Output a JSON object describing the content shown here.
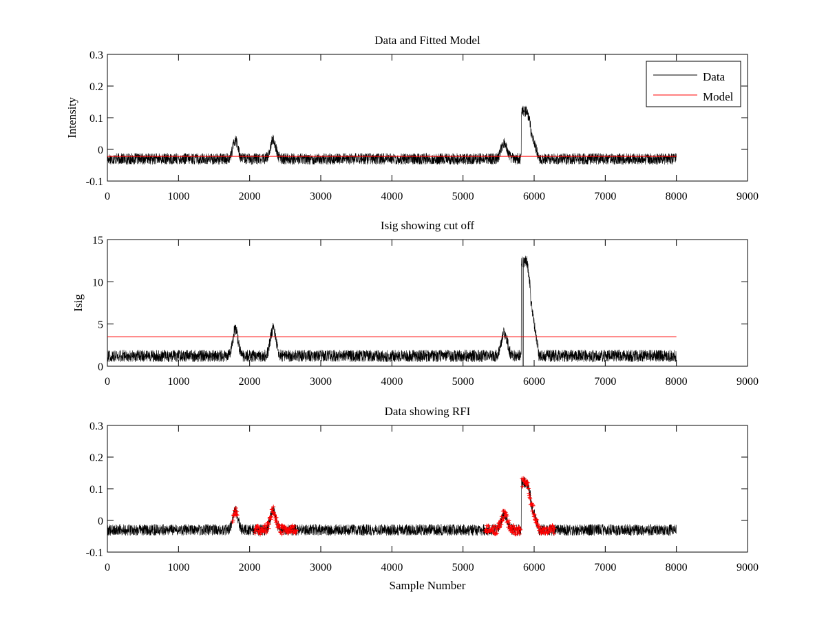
{
  "chart_data": [
    {
      "type": "line",
      "title": "Data and Fitted Model",
      "xlabel": "",
      "ylabel": "Intensity",
      "xlim": [
        0,
        9000
      ],
      "ylim": [
        -0.1,
        0.3
      ],
      "xticks": [
        "0",
        "1000",
        "2000",
        "3000",
        "4000",
        "5000",
        "6000",
        "7000",
        "8000",
        "9000"
      ],
      "yticks": [
        "-0.1",
        "0",
        "0.1",
        "0.2",
        "0.3"
      ],
      "legend": {
        "position": "top-right",
        "entries": [
          "Data",
          "Model"
        ]
      },
      "series": [
        {
          "name": "Data",
          "color": "#000000",
          "noise": 0.018,
          "x_range": [
            0,
            8000
          ],
          "baseline": -0.03,
          "features": [
            {
              "x": 1800,
              "y": 0.03
            },
            {
              "x": 2330,
              "y": 0.03
            },
            {
              "x": 5580,
              "y": 0.02
            },
            {
              "x": 5880,
              "y": 0.12
            },
            {
              "x": 5950,
              "y": 0.08
            },
            {
              "x": 6050,
              "y": -0.01
            }
          ]
        },
        {
          "name": "Model",
          "color": "#ff0000",
          "x": [
            0,
            8000
          ],
          "y": [
            -0.022,
            -0.022
          ]
        }
      ]
    },
    {
      "type": "line",
      "title": "Isig showing cut off",
      "xlabel": "",
      "ylabel": "Isig",
      "xlim": [
        0,
        9000
      ],
      "ylim": [
        0,
        15
      ],
      "xticks": [
        "0",
        "1000",
        "2000",
        "3000",
        "4000",
        "5000",
        "6000",
        "7000",
        "8000",
        "9000"
      ],
      "yticks": [
        "0",
        "5",
        "10",
        "15"
      ],
      "series": [
        {
          "color": "#000000",
          "x_range": [
            0,
            8000
          ],
          "baseline": 0.8,
          "noise": 0.9,
          "features": [
            {
              "x": 1800,
              "y": 4
            },
            {
              "x": 2330,
              "y": 4
            },
            {
              "x": 5580,
              "y": 3.5
            },
            {
              "x": 5880,
              "y": 12
            },
            {
              "x": 5950,
              "y": 9
            },
            {
              "x": 6050,
              "y": 1.5
            }
          ]
        },
        {
          "color": "#ff0000",
          "x": [
            0,
            8000
          ],
          "y": [
            3.5,
            3.5
          ]
        }
      ]
    },
    {
      "type": "scatter",
      "title": "Data showing RFI",
      "xlabel": "Sample Number",
      "ylabel": "",
      "xlim": [
        0,
        9000
      ],
      "ylim": [
        -0.1,
        0.3
      ],
      "xticks": [
        "0",
        "1000",
        "2000",
        "3000",
        "4000",
        "5000",
        "6000",
        "7000",
        "8000",
        "9000"
      ],
      "yticks": [
        "-0.1",
        "0",
        "0.1",
        "0.2",
        "0.3"
      ],
      "series": [
        {
          "color": "#000000",
          "x_range": [
            0,
            8000
          ],
          "baseline": -0.03,
          "noise": 0.018,
          "features": [
            {
              "x": 1800,
              "y": 0.03
            },
            {
              "x": 2330,
              "y": 0.03
            },
            {
              "x": 5580,
              "y": 0.02
            },
            {
              "x": 5880,
              "y": 0.12
            },
            {
              "x": 5950,
              "y": 0.08
            },
            {
              "x": 6050,
              "y": -0.01
            }
          ]
        },
        {
          "color": "#ff0000",
          "marker": "+",
          "x_ranges": [
            [
              1760,
              1830
            ],
            [
              2070,
              2660
            ],
            [
              5310,
              5810
            ],
            [
              5830,
              6290
            ]
          ]
        }
      ]
    }
  ]
}
